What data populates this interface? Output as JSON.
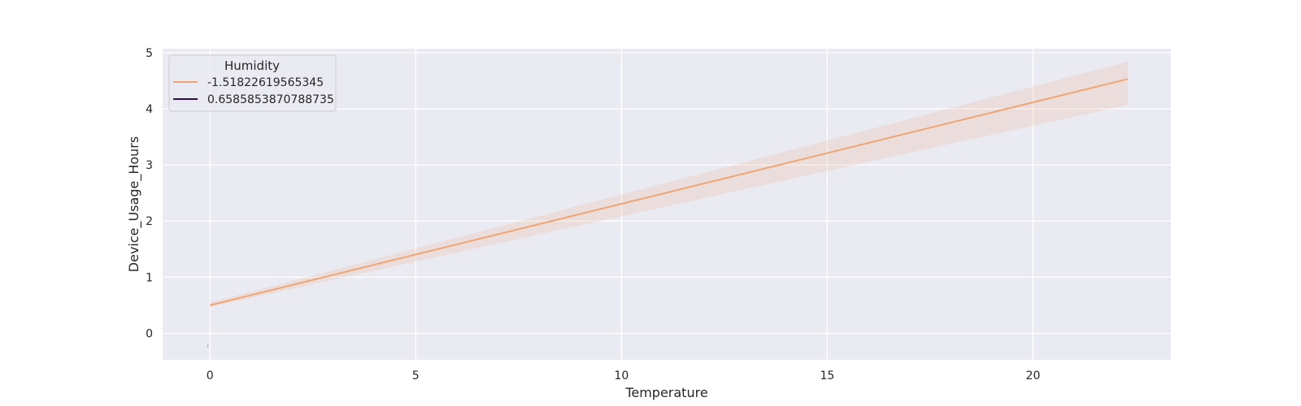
{
  "chart_data": {
    "type": "line",
    "xlabel": "Temperature",
    "ylabel": "Device_Usage_Hours",
    "xlim": [
      -1.15,
      23.35
    ],
    "ylim": [
      -0.47,
      5.07
    ],
    "xticks": [
      0,
      5,
      10,
      15,
      20
    ],
    "yticks": [
      0,
      1,
      2,
      3,
      4,
      5
    ],
    "grid": true,
    "legend": {
      "title": "Humidity",
      "placement": "top-left",
      "entries": [
        {
          "label": "-1.51822619565345",
          "color": "#f0a474"
        },
        {
          "label": "0.6585853870788735",
          "color": "#2d0b4e"
        }
      ]
    },
    "series": [
      {
        "name": "-1.51822619565345",
        "color": "#f0a474",
        "x": [
          0,
          22.3
        ],
        "y": [
          0.5,
          4.53
        ],
        "ci_lower": [
          0.47,
          4.07
        ],
        "ci_upper": [
          0.55,
          4.84
        ]
      },
      {
        "name": "0.6585853870788735",
        "color": "#2d0b4e",
        "x": [
          -0.05,
          -0.05
        ],
        "y": [
          -0.2,
          -0.25
        ]
      }
    ],
    "colors": {
      "plot_background": "#eaeaf2",
      "grid": "#ffffff",
      "ci_fill": "#f0a474"
    }
  }
}
